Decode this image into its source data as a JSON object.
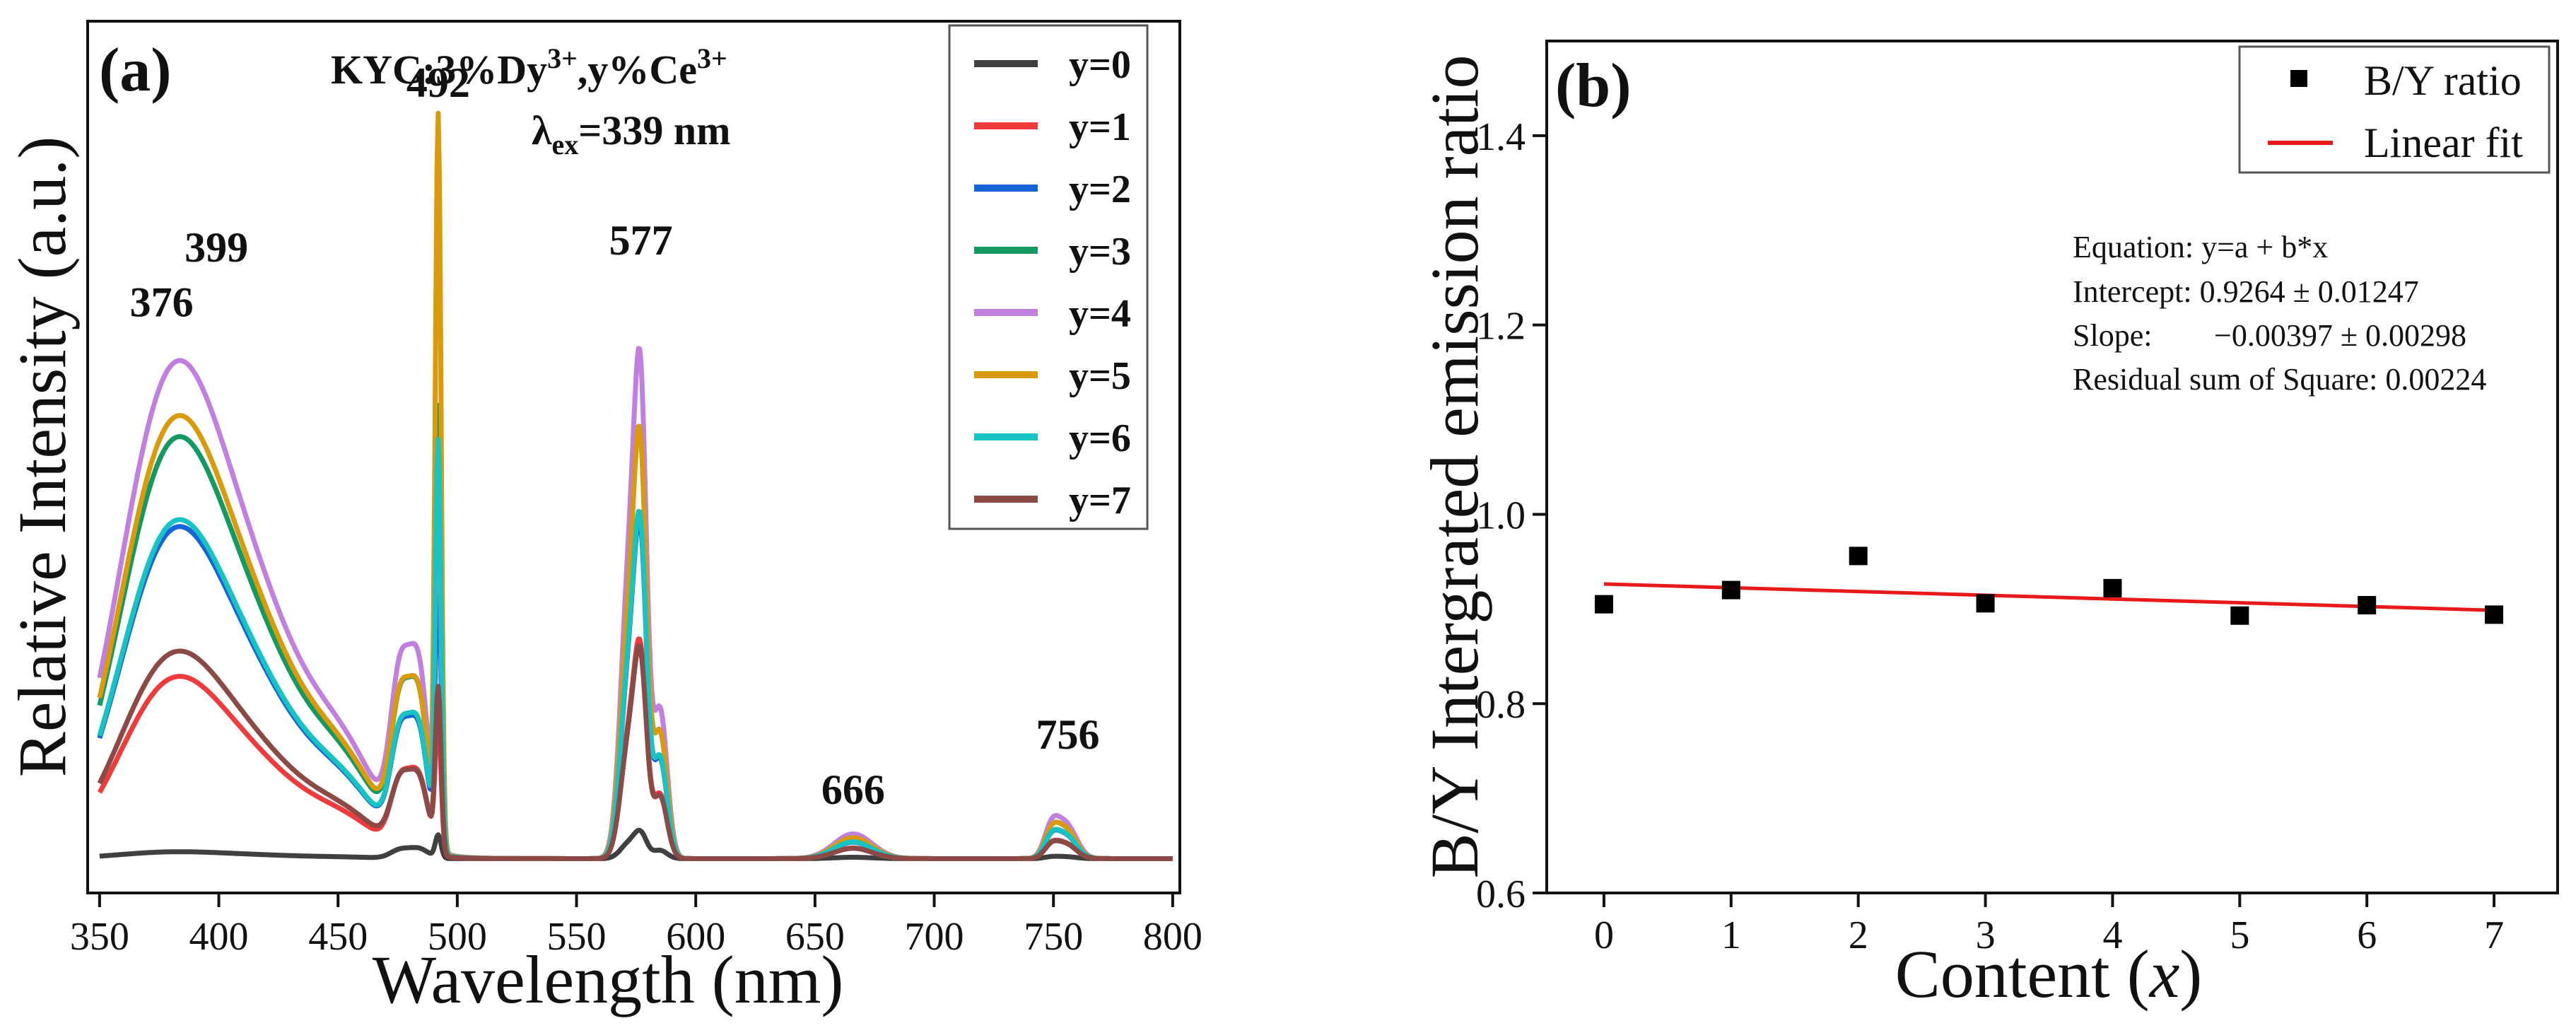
{
  "chart_data": [
    {
      "type": "line",
      "panel_label": "(a)",
      "title_line1": "KYC:3%Dy",
      "title_line1_sup1": "3+",
      "title_line1_mid": ",y%Ce",
      "title_line1_sup2": "3+",
      "title_line2_lambda": "λ",
      "title_line2_sub": "ex",
      "title_line2_rest": "=339 nm",
      "xlabel": "Wavelength (nm)",
      "ylabel": "Relative Intensity (a.u.)",
      "xlim": [
        345,
        803
      ],
      "ylim": [
        -0.05,
        1.22
      ],
      "x_ticks": [
        "350",
        "400",
        "450",
        "500",
        "550",
        "600",
        "650",
        "700",
        "750",
        "800"
      ],
      "peak_labels": [
        {
          "text": "376",
          "x": 376,
          "y": 0.79
        },
        {
          "text": "399",
          "x": 399,
          "y": 0.87
        },
        {
          "text": "492",
          "x": 492,
          "y": 1.11
        },
        {
          "text": "577",
          "x": 577,
          "y": 0.88
        },
        {
          "text": "666",
          "x": 666,
          "y": 0.08
        },
        {
          "text": "756",
          "x": 756,
          "y": 0.16
        }
      ],
      "series": [
        {
          "name": "y=0",
          "color": "#404040",
          "scale": 0.04,
          "blue": 0.25,
          "sharp": 1.0
        },
        {
          "name": "y=1",
          "color": "#ef3b3b",
          "scale": 0.31,
          "blue": 0.85,
          "sharp": 0.75
        },
        {
          "name": "y=2",
          "color": "#1764d8",
          "scale": 0.48,
          "blue": 1.0,
          "sharp": 1.0
        },
        {
          "name": "y=3",
          "color": "#129a62",
          "scale": 0.61,
          "blue": 1.0,
          "sharp": 1.25
        },
        {
          "name": "y=4",
          "color": "#c17fe0",
          "scale": 0.72,
          "blue": 1.0,
          "sharp": 0.85
        },
        {
          "name": "y=5",
          "color": "#d99a0b",
          "scale": 0.61,
          "blue": 1.05,
          "sharp": 2.1
        },
        {
          "name": "y=6",
          "color": "#17c3c3",
          "scale": 0.49,
          "blue": 1.0,
          "sharp": 1.45
        },
        {
          "name": "y=7",
          "color": "#8b4a46",
          "scale": 0.3,
          "blue": 1.0,
          "sharp": 0.95
        }
      ]
    },
    {
      "type": "scatter",
      "panel_label": "(b)",
      "xlabel_main": "Content (",
      "xlabel_var": "x",
      "xlabel_end": ")",
      "ylabel": "B/Y Intergrated emission ratio",
      "xlim": [
        -0.45,
        7.5
      ],
      "ylim": [
        0.6,
        1.5
      ],
      "x_ticks": [
        "0",
        "1",
        "2",
        "3",
        "4",
        "5",
        "6",
        "7"
      ],
      "y_ticks": [
        "0.6",
        "0.8",
        "1.0",
        "1.2",
        "1.4"
      ],
      "x": [
        0,
        1,
        2,
        3,
        4,
        5,
        6,
        7
      ],
      "y": [
        0.905,
        0.92,
        0.956,
        0.906,
        0.922,
        0.893,
        0.904,
        0.894
      ],
      "fit": {
        "intercept": 0.9264,
        "slope": -0.00397,
        "color": "#e8191b"
      },
      "legend": [
        {
          "label": "B/Y ratio",
          "kind": "marker"
        },
        {
          "label": "Linear fit",
          "kind": "line"
        }
      ],
      "equation_lines": {
        "equation": "Equation: y=a + b*x",
        "intercept": "Intercept: 0.9264 ± 0.01247",
        "slope_label": "Slope:",
        "slope_value": "−0.00397 ± 0.00298",
        "rss": "Residual sum of Square: 0.00224"
      }
    }
  ]
}
